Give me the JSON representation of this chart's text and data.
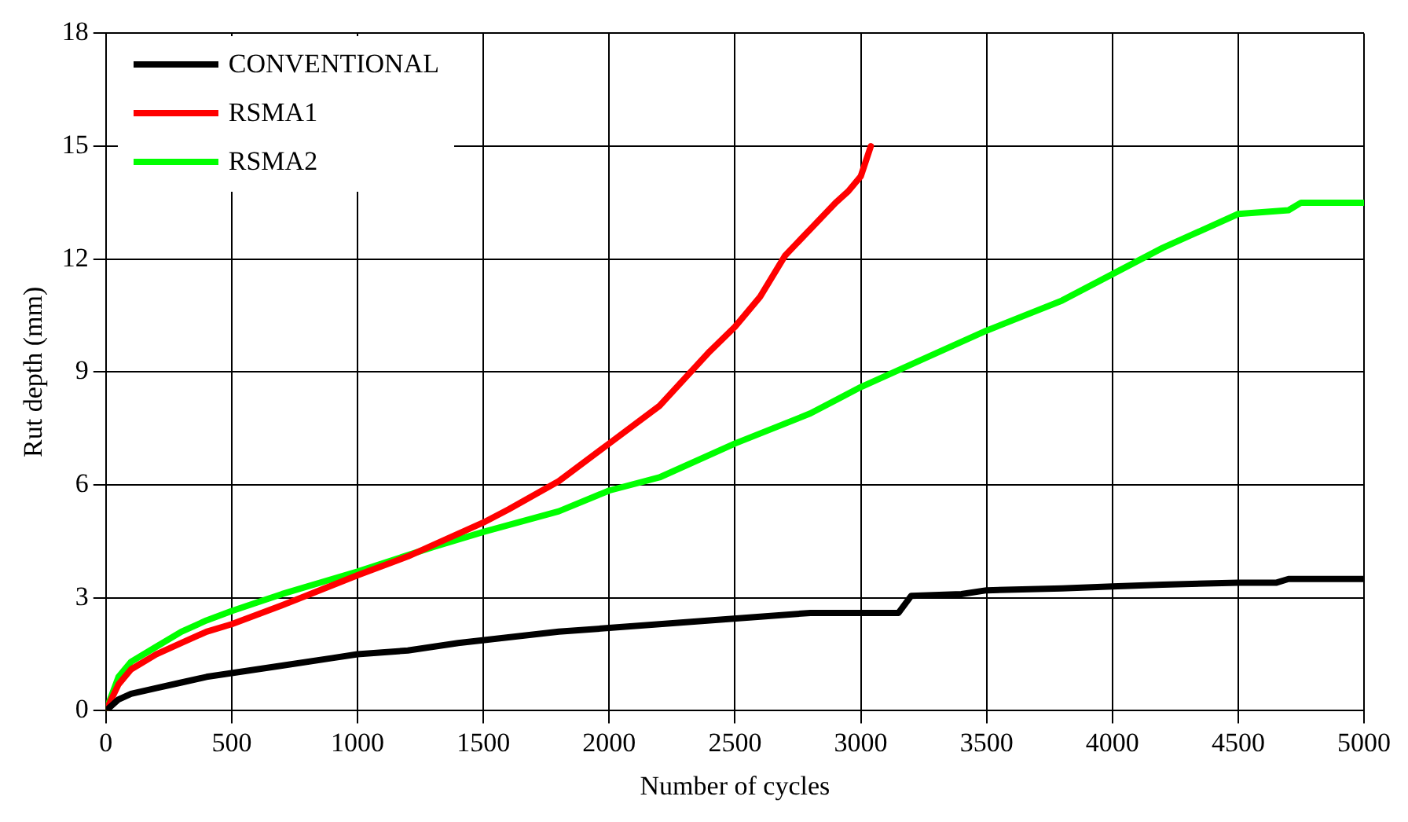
{
  "chart_data": {
    "type": "line",
    "xlabel": "Number of cycles",
    "ylabel": "Rut depth (mm)",
    "xlim": [
      0,
      5000
    ],
    "xticks": [
      0,
      500,
      1000,
      1500,
      2000,
      2500,
      3000,
      3500,
      4000,
      4500,
      5000
    ],
    "ylim": [
      0,
      18
    ],
    "yticks": [
      0,
      3,
      6,
      9,
      12,
      15,
      18
    ],
    "grid": true,
    "legend": "top left",
    "marker": "none",
    "line_style": "solid",
    "series": [
      {
        "name": "CONVENTIONAL",
        "color": "#000000",
        "x": [
          0,
          50,
          100,
          200,
          300,
          400,
          500,
          700,
          900,
          1000,
          1200,
          1400,
          1600,
          1800,
          2000,
          2200,
          2400,
          2600,
          2800,
          3000,
          3150,
          3200,
          3400,
          3500,
          3800,
          4000,
          4200,
          4500,
          4650,
          4700,
          5000
        ],
        "values": [
          0,
          0.3,
          0.45,
          0.6,
          0.75,
          0.9,
          1.0,
          1.2,
          1.4,
          1.5,
          1.6,
          1.8,
          1.95,
          2.1,
          2.2,
          2.3,
          2.4,
          2.5,
          2.6,
          2.6,
          2.6,
          3.05,
          3.1,
          3.2,
          3.25,
          3.3,
          3.35,
          3.4,
          3.4,
          3.5,
          3.5
        ]
      },
      {
        "name": "RSMA1",
        "color": "#ff0000",
        "x": [
          0,
          50,
          100,
          200,
          300,
          400,
          500,
          700,
          1000,
          1200,
          1300,
          1500,
          1600,
          1800,
          2000,
          2200,
          2400,
          2500,
          2600,
          2700,
          2800,
          2900,
          2950,
          3000,
          3040
        ],
        "values": [
          0,
          0.7,
          1.1,
          1.5,
          1.8,
          2.1,
          2.3,
          2.8,
          3.6,
          4.1,
          4.4,
          5.0,
          5.35,
          6.1,
          7.1,
          8.1,
          9.55,
          10.2,
          11.0,
          12.1,
          12.8,
          13.5,
          13.8,
          14.2,
          15.0
        ]
      },
      {
        "name": "RSMA2",
        "color": "#00ff00",
        "x": [
          0,
          50,
          100,
          200,
          300,
          400,
          500,
          700,
          1000,
          1300,
          1500,
          1800,
          2000,
          2200,
          2500,
          2800,
          3000,
          3300,
          3500,
          3800,
          4000,
          4200,
          4500,
          4700,
          4750,
          5000
        ],
        "values": [
          0,
          0.9,
          1.3,
          1.7,
          2.1,
          2.4,
          2.65,
          3.1,
          3.7,
          4.35,
          4.75,
          5.3,
          5.85,
          6.2,
          7.1,
          7.9,
          8.6,
          9.5,
          10.1,
          10.9,
          11.6,
          12.3,
          13.2,
          13.3,
          13.5,
          13.5
        ]
      }
    ]
  }
}
